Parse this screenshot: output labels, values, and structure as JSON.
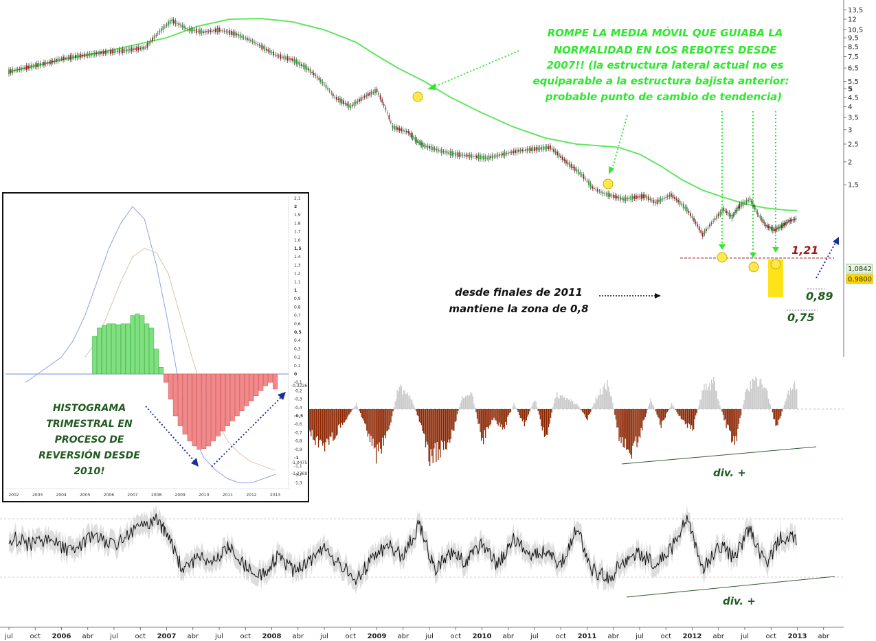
{
  "chart_data": [
    {
      "type": "line",
      "panel": "price",
      "scale": "log",
      "x_ticks": [
        "jul",
        "oct",
        "2006",
        "abr",
        "jul",
        "oct",
        "2007",
        "abr",
        "jul",
        "oct",
        "2008",
        "abr",
        "jul",
        "oct",
        "2009",
        "abr",
        "jul",
        "oct",
        "2010",
        "abr",
        "jul",
        "oct",
        "2011",
        "abr",
        "jul",
        "oct",
        "2012",
        "abr",
        "jul",
        "oct",
        "2013",
        "abr"
      ],
      "y_ticks": [
        "13,5",
        "12",
        "10,5",
        "9,5",
        "8,5",
        "7,5",
        "6,5",
        "5,5",
        "5",
        "4,5",
        "4",
        "3,5",
        "3",
        "2,5",
        "2",
        "1,5"
      ],
      "ylim": [
        0.6,
        14
      ],
      "xlim": [
        2005.5,
        2013.3
      ],
      "series": [
        {
          "chart_type": "candlestick",
          "x": [
            2005.5,
            2005.7,
            2005.9,
            2006.0,
            2006.2,
            2006.4,
            2006.6,
            2006.8,
            2006.95,
            2007.05,
            2007.2,
            2007.35,
            2007.5,
            2007.65,
            2007.8,
            2007.95,
            2008.05,
            2008.2,
            2008.35,
            2008.5,
            2008.6,
            2008.75,
            2008.9,
            2009.0,
            2009.15,
            2009.3,
            2009.38,
            2009.45,
            2009.6,
            2009.75,
            2009.9,
            2010.05,
            2010.2,
            2010.35,
            2010.5,
            2010.65,
            2010.8,
            2010.95,
            2011.05,
            2011.15,
            2011.25,
            2011.35,
            2011.45,
            2011.55,
            2011.65,
            2011.8,
            2011.95,
            2012.1,
            2012.2,
            2012.3,
            2012.38,
            2012.45,
            2012.55,
            2012.62,
            2012.7,
            2012.78,
            2012.85,
            2012.92,
            2013.0
          ],
          "values": [
            6.2,
            6.6,
            7.0,
            7.3,
            7.6,
            7.9,
            8.1,
            8.4,
            10.5,
            11.8,
            10.6,
            10.2,
            10.5,
            10.0,
            9.2,
            8.2,
            7.6,
            7.2,
            6.4,
            5.3,
            4.5,
            4.0,
            4.6,
            4.9,
            3.1,
            2.9,
            2.6,
            2.45,
            2.3,
            2.2,
            2.15,
            2.1,
            2.2,
            2.3,
            2.35,
            2.4,
            2.0,
            1.7,
            1.45,
            1.35,
            1.3,
            1.25,
            1.28,
            1.3,
            1.2,
            1.32,
            1.1,
            0.8,
            0.95,
            1.1,
            1.0,
            1.15,
            1.25,
            1.05,
            0.9,
            0.85,
            0.89,
            0.95,
            0.98
          ]
        },
        {
          "name": "",
          "color": "#5ee65e",
          "x": [
            2005.5,
            2006.0,
            2006.5,
            2007.0,
            2007.3,
            2007.6,
            2007.9,
            2008.2,
            2008.5,
            2008.8,
            2009.0,
            2009.2,
            2009.45,
            2009.7,
            2010.0,
            2010.3,
            2010.6,
            2010.9,
            2011.1,
            2011.3,
            2011.5,
            2011.7,
            2011.9,
            2012.1,
            2012.3,
            2012.5,
            2012.7,
            2012.9,
            2013.0
          ],
          "values": [
            6.2,
            7.2,
            8.2,
            9.5,
            11.0,
            12.0,
            12.1,
            11.6,
            10.5,
            9.0,
            7.6,
            6.5,
            5.5,
            4.5,
            3.7,
            3.1,
            2.7,
            2.5,
            2.45,
            2.4,
            2.2,
            1.9,
            1.6,
            1.4,
            1.28,
            1.18,
            1.12,
            1.09,
            1.0842
          ]
        }
      ],
      "price_labels": [
        "1,0842",
        "0,9800"
      ],
      "annotations": {
        "main_comment": [
          "ROMPE LA MEDIA MÓVIL QUE GUIABA LA",
          "NORMALIDAD EN LOS REBOTES DESDE",
          "2007!! (la estructura lateral actual no es",
          "equiparable a la estructura bajista anterior:",
          "probable punto de cambio de tendencia)"
        ],
        "support_comment": [
          "desde finales de 2011",
          "mantiene la zona de 0,8"
        ],
        "level_high": "1,21",
        "level_mid": "0,89",
        "level_low": "0,75"
      }
    },
    {
      "type": "bar",
      "panel": "histogram",
      "divergence_label": "div. +",
      "positive_color": "#c8c8c8",
      "negative_color": "#8b2500",
      "x": [
        2008.3,
        2008.4,
        2008.5,
        2008.6,
        2008.7,
        2008.8,
        2008.9,
        2009.0,
        2009.1,
        2009.2,
        2009.3,
        2009.4,
        2009.5,
        2009.6,
        2009.7,
        2009.8,
        2009.9,
        2010.0,
        2010.1,
        2010.2,
        2010.3,
        2010.4,
        2010.5,
        2010.6,
        2010.7,
        2010.8,
        2010.9,
        2011.0,
        2011.1,
        2011.2,
        2011.3,
        2011.4,
        2011.5,
        2011.6,
        2011.7,
        2011.8,
        2011.9,
        2012.0,
        2012.1,
        2012.2,
        2012.3,
        2012.4,
        2012.5,
        2012.6,
        2012.7,
        2012.8,
        2012.9,
        2013.0
      ],
      "values": [
        -0.3,
        -0.6,
        -0.8,
        -0.5,
        -0.2,
        0.1,
        -0.4,
        -0.9,
        -0.5,
        0.4,
        0.3,
        -0.2,
        -0.9,
        -0.8,
        -0.6,
        0.2,
        0.3,
        -0.6,
        -0.2,
        -0.4,
        0.1,
        -0.3,
        0.2,
        -0.6,
        0.3,
        0.2,
        0.1,
        -0.2,
        0.3,
        0.5,
        -0.5,
        -0.9,
        -0.5,
        0.2,
        -0.3,
        0.1,
        -0.2,
        -0.4,
        0.4,
        0.5,
        -0.2,
        -0.7,
        0.3,
        0.6,
        0.4,
        -0.4,
        0.3,
        0.5
      ]
    },
    {
      "type": "line",
      "panel": "oscillator",
      "divergence_label": "div. +",
      "x": [
        2005.5,
        2005.7,
        2005.9,
        2006.1,
        2006.3,
        2006.5,
        2006.7,
        2006.9,
        2007.0,
        2007.15,
        2007.3,
        2007.45,
        2007.6,
        2007.75,
        2007.9,
        2008.05,
        2008.2,
        2008.35,
        2008.5,
        2008.65,
        2008.8,
        2008.95,
        2009.1,
        2009.25,
        2009.4,
        2009.55,
        2009.7,
        2009.85,
        2010.0,
        2010.15,
        2010.3,
        2010.45,
        2010.6,
        2010.75,
        2010.9,
        2011.05,
        2011.2,
        2011.35,
        2011.5,
        2011.65,
        2011.8,
        2011.95,
        2012.1,
        2012.25,
        2012.4,
        2012.55,
        2012.7,
        2012.85,
        2013.0
      ],
      "values": [
        0.6,
        0.5,
        0.55,
        0.4,
        0.6,
        0.5,
        0.7,
        0.8,
        0.65,
        0.2,
        0.35,
        0.3,
        0.5,
        0.25,
        0.15,
        0.35,
        0.2,
        0.3,
        0.45,
        0.25,
        0.1,
        0.3,
        0.5,
        0.35,
        0.75,
        0.2,
        0.4,
        0.3,
        0.5,
        0.25,
        0.6,
        0.35,
        0.45,
        0.25,
        0.7,
        0.2,
        0.1,
        0.3,
        0.4,
        0.25,
        0.45,
        0.8,
        0.2,
        0.5,
        0.35,
        0.7,
        0.25,
        0.6,
        0.55
      ]
    },
    {
      "type": "bar",
      "panel": "inset-quarterly-histogram",
      "x_ticks": [
        "2002",
        "2003",
        "2004",
        "2005",
        "2006",
        "2007",
        "2008",
        "2009",
        "2010",
        "2011",
        "2012",
        "2013"
      ],
      "y_ticks": [
        "2,1",
        "2",
        "1,9",
        "1,8",
        "1,7",
        "1,6",
        "1,5",
        "1,4",
        "1,3",
        "1,2",
        "1,1",
        "1",
        "0,9",
        "0,8",
        "0,7",
        "0,6",
        "0,5",
        "0,4",
        "0,3",
        "0,2",
        "0,1",
        "0",
        "-0,1",
        "-0,2",
        "-0,3",
        "-0,4",
        "-0,5",
        "-0,6",
        "-0,7",
        "-0,8",
        "-0,9",
        "-1",
        "-1,1",
        "-1,2",
        "-1,3"
      ],
      "ylim": [
        -1.35,
        2.15
      ],
      "categories": [
        "2005.4",
        "2005.6",
        "2005.8",
        "2006.0",
        "2006.2",
        "2006.4",
        "2006.6",
        "2006.8",
        "2007.0",
        "2007.2",
        "2007.4",
        "2007.6",
        "2007.8",
        "2008.0",
        "2008.2",
        "2008.4",
        "2008.6",
        "2008.8",
        "2009.0",
        "2009.2",
        "2009.4",
        "2009.6",
        "2009.8",
        "2010.0",
        "2010.2",
        "2010.4",
        "2010.6",
        "2010.8",
        "2011.0",
        "2011.2",
        "2011.4",
        "2011.6",
        "2011.8",
        "2012.0",
        "2012.2",
        "2012.4",
        "2012.6",
        "2012.8",
        "2013.0"
      ],
      "values": [
        0.45,
        0.55,
        0.58,
        0.6,
        0.6,
        0.59,
        0.6,
        0.6,
        0.7,
        0.72,
        0.7,
        0.6,
        0.55,
        0.3,
        0.08,
        -0.1,
        -0.3,
        -0.5,
        -0.62,
        -0.72,
        -0.8,
        -0.86,
        -0.9,
        -0.89,
        -0.86,
        -0.8,
        -0.74,
        -0.68,
        -0.62,
        -0.56,
        -0.5,
        -0.44,
        -0.38,
        -0.32,
        -0.26,
        -0.2,
        -0.14,
        -0.1,
        -0.18
      ],
      "series": [
        {
          "name": "",
          "color": "#8ea0e8",
          "x": [
            2002.5,
            2003.0,
            2003.5,
            2004.0,
            2004.5,
            2005.0,
            2005.5,
            2006.0,
            2006.5,
            2007.0,
            2007.5,
            2008.0,
            2008.5,
            2009.0,
            2009.5,
            2010.0,
            2010.5,
            2011.0,
            2011.5,
            2012.0,
            2012.5,
            2013.0
          ],
          "values": [
            -0.1,
            0.0,
            0.1,
            0.2,
            0.4,
            0.7,
            1.1,
            1.5,
            1.8,
            2.0,
            1.85,
            1.3,
            0.6,
            -0.2,
            -0.7,
            -1.0,
            -1.15,
            -1.25,
            -1.3,
            -1.3,
            -1.25,
            -1.2
          ]
        },
        {
          "name": "",
          "color": "#d8c2b0",
          "x": [
            2005.0,
            2005.5,
            2006.0,
            2006.5,
            2007.0,
            2007.5,
            2008.0,
            2008.5,
            2009.0,
            2009.5,
            2010.0,
            2010.5,
            2011.0,
            2011.5,
            2012.0,
            2012.5,
            2013.0
          ],
          "values": [
            0.2,
            0.4,
            0.75,
            1.1,
            1.4,
            1.5,
            1.45,
            1.2,
            0.7,
            0.2,
            -0.25,
            -0.55,
            -0.8,
            -0.95,
            -1.05,
            -1.1,
            -1.15
          ]
        }
      ],
      "price_labels": [
        "-0,3226",
        "-1,0475",
        "-1,2769"
      ],
      "annotation": [
        "HISTOGRAMA",
        "TRIMESTRAL EN",
        "PROCESO DE",
        "REVERSIÓN DESDE",
        "2010!"
      ]
    }
  ]
}
